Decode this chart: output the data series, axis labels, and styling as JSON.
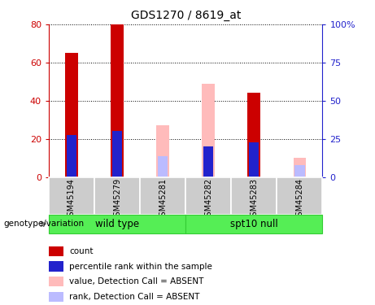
{
  "title": "GDS1270 / 8619_at",
  "samples": [
    "GSM45194",
    "GSM45279",
    "GSM45281",
    "GSM45282",
    "GSM45283",
    "GSM45284"
  ],
  "count_values": [
    65,
    80,
    0,
    0,
    44,
    0
  ],
  "rank_values": [
    22,
    24,
    0,
    16,
    18,
    0
  ],
  "absent_value_values": [
    0,
    0,
    27,
    49,
    0,
    10
  ],
  "absent_rank_values": [
    0,
    0,
    11,
    15,
    0,
    6
  ],
  "ylim_left": [
    0,
    80
  ],
  "ylim_right": [
    0,
    100
  ],
  "yticks_left": [
    0,
    20,
    40,
    60,
    80
  ],
  "yticks_right": [
    0,
    25,
    50,
    75,
    100
  ],
  "ytick_labels_left": [
    "0",
    "20",
    "40",
    "60",
    "80"
  ],
  "ytick_labels_right": [
    "0",
    "25",
    "50",
    "75",
    "100%"
  ],
  "color_count": "#cc0000",
  "color_rank": "#2222cc",
  "color_absent_value": "#ffbbbb",
  "color_absent_rank": "#bbbbff",
  "color_left_axis": "#cc0000",
  "color_right_axis": "#2222cc",
  "bar_width": 0.28,
  "rank_bar_width": 0.22,
  "group_color": "#55ee55",
  "group_border_color": "#33cc33",
  "sample_box_color": "#cccccc",
  "label_count": "count",
  "label_rank": "percentile rank within the sample",
  "label_absent_value": "value, Detection Call = ABSENT",
  "label_absent_rank": "rank, Detection Call = ABSENT",
  "genotype_label": "genotype/variation",
  "group_list": [
    [
      "wild type",
      0,
      2
    ],
    [
      "spt10 null",
      3,
      5
    ]
  ],
  "bg_color": "#ffffff"
}
